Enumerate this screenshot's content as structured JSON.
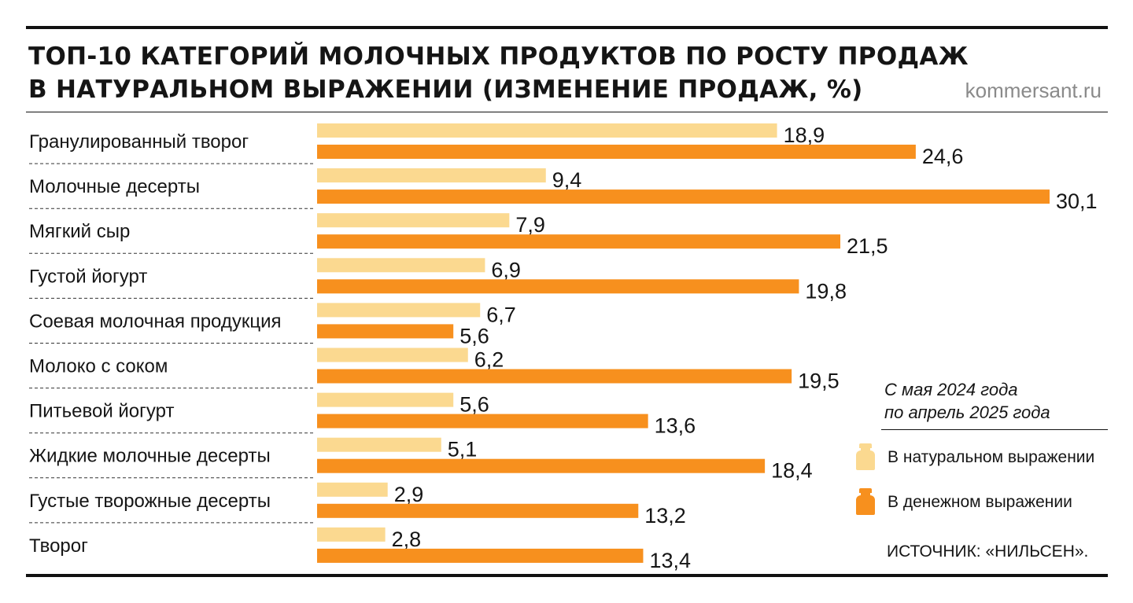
{
  "header": {
    "title_line1": "ТОП-10 КАТЕГОРИЙ МОЛОЧНЫХ ПРОДУКТОВ ПО РОСТУ ПРОДАЖ",
    "title_line2": "В НАТУРАЛЬНОМ ВЫРАЖЕНИИ (ИЗМЕНЕНИЕ ПРОДАЖ, %)",
    "site": "kommersant.ru"
  },
  "legend": {
    "period_line1": "С мая 2024 года",
    "period_line2": "по апрель 2025 года",
    "items": [
      {
        "label": "В натуральном выражении",
        "color": "#fbd990",
        "icon": "jar-icon"
      },
      {
        "label": "В денежном выражении",
        "color": "#f7901e",
        "icon": "jar-icon"
      }
    ]
  },
  "source": "ИСТОЧНИК: «НИЛЬСЕН».",
  "chart_data": {
    "type": "bar",
    "orientation": "horizontal",
    "title": "ТОП-10 КАТЕГОРИЙ МОЛОЧНЫХ ПРОДУКТОВ ПО РОСТУ ПРОДАЖ В НАТУРАЛЬНОМ ВЫРАЖЕНИИ (ИЗМЕНЕНИЕ ПРОДАЖ, %)",
    "categories": [
      "Гранулированный творог",
      "Молочные десерты",
      "Мягкий сыр",
      "Густой йогурт",
      "Соевая молочная продукция",
      "Молоко с соком",
      "Питьевой йогурт",
      "Жидкие молочные десерты",
      "Густые творожные десерты",
      "Творог"
    ],
    "series": [
      {
        "name": "В натуральном выражении",
        "color": "#fbd990",
        "values": [
          18.9,
          9.4,
          7.9,
          6.9,
          6.7,
          6.2,
          5.6,
          5.1,
          2.9,
          2.8
        ],
        "labels": [
          "18,9",
          "9,4",
          "7,9",
          "6,9",
          "6,7",
          "6,2",
          "5,6",
          "5,1",
          "2,9",
          "2,8"
        ]
      },
      {
        "name": "В денежном выражении",
        "color": "#f7901e",
        "values": [
          24.6,
          30.1,
          21.5,
          19.8,
          5.6,
          19.5,
          13.6,
          18.4,
          13.2,
          13.4
        ],
        "labels": [
          "24,6",
          "30,1",
          "21,5",
          "19,8",
          "5,6",
          "19,5",
          "13,6",
          "18,4",
          "13,2",
          "13,4"
        ]
      }
    ],
    "xlim": [
      0,
      30.1
    ],
    "grid": false,
    "legend_position": "right"
  }
}
